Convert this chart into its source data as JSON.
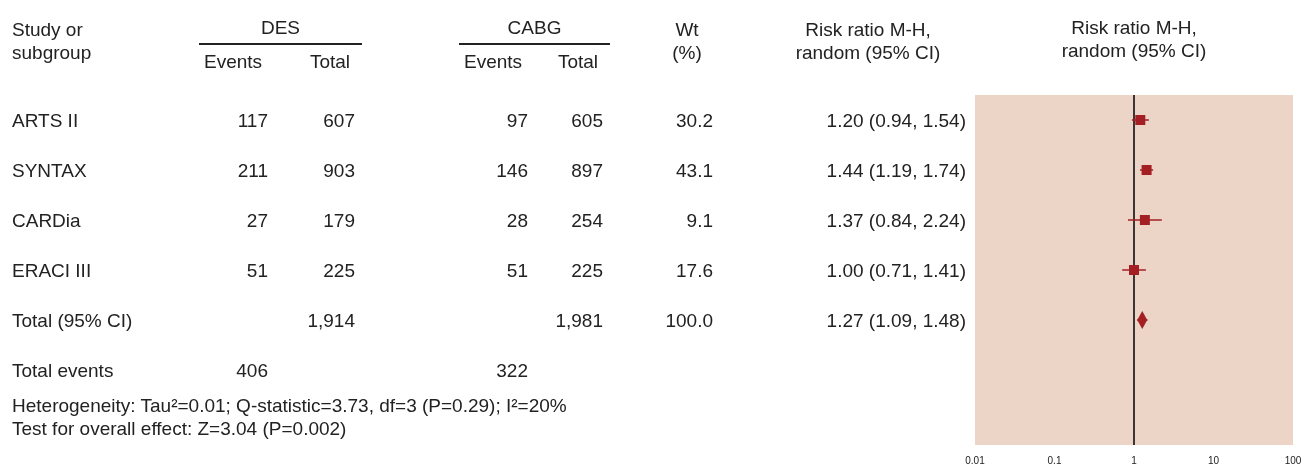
{
  "chart_data": [
    {
      "type": "other",
      "categories": [
        "Study or\nsubgroup",
        "Events",
        "Total",
        "Events",
        "Total",
        "Wt\n(%)",
        "Risk ratio M-H,\nrandom (95% CI)"
      ],
      "y_categories": [
        "ARTS II",
        "SYNTAX",
        "CARDia",
        "ERACI III",
        "Total (95% CI)",
        "Total events"
      ],
      "cell_labels": [
        [
          "117",
          "607",
          "97",
          "605",
          "30.2",
          "1.20 (0.94, 1.54)"
        ],
        [
          "211",
          "903",
          "146",
          "897",
          "43.1",
          "1.44 (1.19, 1.74)"
        ],
        [
          "27",
          "179",
          "28",
          "254",
          "9.1",
          "1.37 (0.84, 2.24)"
        ],
        [
          "51",
          "225",
          "51",
          "225",
          "17.6",
          "1.00 (0.71, 1.41)"
        ],
        [
          null,
          "1,914",
          null,
          "1,981",
          "100.0",
          "1.27 (1.09, 1.48)"
        ],
        [
          "406",
          null,
          "322",
          null,
          null,
          null
        ]
      ],
      "annotations": [
        "DES",
        "CABG",
        "Heterogeneity: Tau²=0.01; Q-statistic=3.73, df=3 (P=0.29); I²=20%",
        "Test for overall effect: Z=3.04 (P=0.002)"
      ]
    },
    {
      "type": "scatter",
      "title": "Risk ratio M-H,\nrandom (95% CI)",
      "orientation": "horizontal",
      "categories": [
        null,
        null,
        null,
        null,
        null,
        null,
        null
      ],
      "series": [
        {
          "color": "#a31f24",
          "marker": "square",
          "values": [
            1.2,
            1.44,
            1.37,
            1.0,
            null,
            null,
            null
          ],
          "errors": [
            [
              0.94,
              1.54
            ],
            [
              1.19,
              1.74
            ],
            [
              0.84,
              2.24
            ],
            [
              0.71,
              1.41
            ],
            null,
            null,
            null
          ]
        },
        {
          "color": "#a31f24",
          "marker": "diamond",
          "values": [
            null,
            null,
            null,
            null,
            1.27,
            null,
            null
          ],
          "errors": [
            null,
            null,
            null,
            null,
            [
              1.09,
              1.48
            ],
            null,
            null
          ]
        }
      ],
      "log": "x",
      "xlim": [
        0.01,
        100
      ],
      "xticks": [
        {
          "value": 0.01,
          "label": "0.01"
        },
        {
          "value": 0.1,
          "label": "0.1"
        },
        1,
        10,
        100
      ],
      "ref_lines": [
        {
          "axis": "x",
          "value": 1,
          "color": "#000000"
        }
      ],
      "tick_labels": "x",
      "grid": false
    }
  ]
}
